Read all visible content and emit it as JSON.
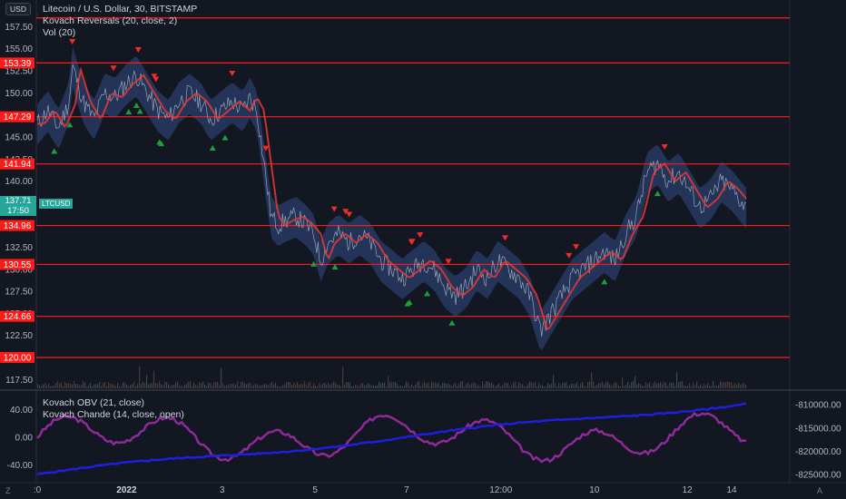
{
  "chart_data": [
    {
      "type": "line",
      "title": "Litecoin / U.S. Dollar, 30, BITSTAMP",
      "indicators": [
        "Kovach Reversals (20, close, 2)",
        "Vol (20)"
      ],
      "currency_button": "USD",
      "symbol": "LTCUSD",
      "last_price": {
        "value": "137.71",
        "countdown": "17:50"
      },
      "y_ticks": [
        157.5,
        155.0,
        152.5,
        150.0,
        147.5,
        145.0,
        142.5,
        140.0,
        137.5,
        135.0,
        132.5,
        130.0,
        127.5,
        125.0,
        122.5,
        120.0,
        117.5
      ],
      "y_tick_labels": [
        "157.50",
        "155.00",
        "152.50",
        "150.00",
        "147.50",
        "145.00",
        "142.50",
        "140.00",
        "137.50",
        "135.00",
        "132.50",
        "130.00",
        "127.50",
        "125.00",
        "122.50",
        "120.00",
        "117.50"
      ],
      "ylim": [
        116.5,
        159.5
      ],
      "levels": [
        {
          "value": 158.5,
          "label": ""
        },
        {
          "value": 153.39,
          "label": "153.39"
        },
        {
          "value": 147.29,
          "label": "147.29"
        },
        {
          "value": 141.94,
          "label": "141.94"
        },
        {
          "value": 134.96,
          "label": "134.96"
        },
        {
          "value": 130.55,
          "label": "130.55"
        },
        {
          "value": 124.66,
          "label": "124.66"
        },
        {
          "value": 120.0,
          "label": "120.00"
        }
      ],
      "x_ticks": [
        {
          "t": 0.0,
          "label": ":0"
        },
        {
          "t": 0.126,
          "label": "2022"
        },
        {
          "t": 0.261,
          "label": "3"
        },
        {
          "t": 0.392,
          "label": "5"
        },
        {
          "t": 0.521,
          "label": "7"
        },
        {
          "t": 0.654,
          "label": "12:00"
        },
        {
          "t": 0.786,
          "label": "10"
        },
        {
          "t": 0.917,
          "label": "12"
        },
        {
          "t": 1.0,
          "label": ""
        }
      ],
      "x_tick_extra": [
        {
          "label": "14"
        }
      ],
      "price_path": [
        [
          0,
          146.5
        ],
        [
          0.03,
          148
        ],
        [
          0.06,
          146
        ],
        [
          0.09,
          149
        ],
        [
          0.1,
          153
        ],
        [
          0.13,
          149
        ],
        [
          0.16,
          147
        ],
        [
          0.19,
          150
        ],
        [
          0.22,
          149.5
        ],
        [
          0.25,
          151
        ],
        [
          0.28,
          152
        ],
        [
          0.31,
          150
        ],
        [
          0.34,
          148
        ],
        [
          0.37,
          147
        ],
        [
          0.4,
          149
        ],
        [
          0.43,
          150
        ],
        [
          0.46,
          149
        ],
        [
          0.49,
          147
        ],
        [
          0.52,
          148
        ],
        [
          0.55,
          149
        ],
        [
          0.58,
          148
        ],
        [
          0.6,
          149.5
        ],
        [
          0.62,
          148
        ],
        [
          0.64,
          142
        ],
        [
          0.66,
          136
        ],
        [
          0.68,
          135
        ],
        [
          0.7,
          135.5
        ],
        [
          0.73,
          136
        ],
        [
          0.76,
          135
        ],
        [
          0.78,
          134
        ],
        [
          0.8,
          131
        ],
        [
          0.82,
          133
        ],
        [
          0.85,
          134
        ],
        [
          0.88,
          133
        ],
        [
          0.91,
          134
        ],
        [
          0.94,
          133
        ],
        [
          0.97,
          131
        ],
        [
          1.0,
          130
        ],
        [
          1.03,
          129
        ],
        [
          1.06,
          130
        ],
        [
          1.09,
          131
        ],
        [
          1.12,
          130
        ],
        [
          1.15,
          128
        ],
        [
          1.18,
          127
        ],
        [
          1.21,
          128
        ],
        [
          1.24,
          130
        ],
        [
          1.27,
          129
        ],
        [
          1.3,
          131
        ],
        [
          1.33,
          130
        ],
        [
          1.36,
          129
        ],
        [
          1.39,
          127
        ],
        [
          1.42,
          123
        ],
        [
          1.45,
          125
        ],
        [
          1.48,
          127
        ],
        [
          1.51,
          129
        ],
        [
          1.54,
          130
        ],
        [
          1.57,
          131
        ],
        [
          1.6,
          132
        ],
        [
          1.63,
          131
        ],
        [
          1.66,
          134
        ],
        [
          1.69,
          136
        ],
        [
          1.72,
          141
        ],
        [
          1.75,
          142
        ],
        [
          1.78,
          140
        ],
        [
          1.81,
          141
        ],
        [
          1.84,
          139
        ],
        [
          1.87,
          137
        ],
        [
          1.9,
          138
        ],
        [
          1.93,
          140
        ],
        [
          1.96,
          139
        ],
        [
          2.0,
          137
        ]
      ],
      "sell_signals": [
        0.099,
        0.215,
        0.285,
        0.33,
        0.335,
        0.55,
        0.645,
        0.838,
        0.87,
        0.88,
        1.056,
        1.058,
        1.08,
        1.16,
        1.32,
        1.52,
        1.5,
        1.77
      ],
      "buy_signals": [
        0.048,
        0.092,
        0.258,
        0.28,
        0.29,
        0.345,
        0.35,
        0.495,
        0.53,
        0.78,
        0.84,
        1.045,
        1.05,
        1.1,
        1.17,
        1.6,
        1.75
      ],
      "color_price": "#aeb7c4",
      "color_ma": "#e53935",
      "color_band": "#2a3f6b",
      "color_level": "#ff1a1a"
    },
    {
      "type": "line",
      "indicators": [
        "Kovach OBV (21, close)",
        "Kovach Chande (14, close, open)"
      ],
      "y_ticks_left": [
        40.0,
        0.0,
        -40.0
      ],
      "y_tick_labels_left": [
        "40.00",
        "0.00",
        "-40.00"
      ],
      "ylim_left": [
        -60,
        60
      ],
      "y_ticks_right": [
        -810000,
        -815000,
        -820000,
        -825000
      ],
      "y_tick_labels_right": [
        "-810000.00",
        "-815000.00",
        "-820000.00",
        "-825000.00"
      ],
      "ylim_right": [
        -826000,
        -808000
      ],
      "color_obv": "#1f1fe0",
      "color_chande": "#8e2a9a"
    }
  ],
  "footer": {
    "left_icon": "Z",
    "right_icon": "A",
    "zoom_icon": "gear"
  }
}
